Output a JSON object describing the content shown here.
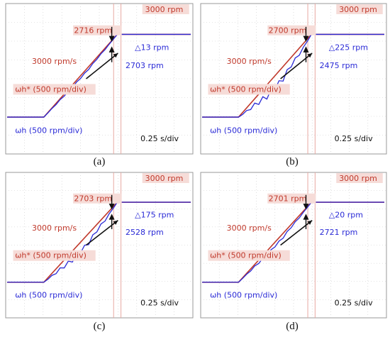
{
  "panels": [
    {
      "caption": "(a)",
      "chart_data": {
        "type": "line",
        "xlabel": "0.25 s/div",
        "legend_ref": "ωh* (500 rpm/div)",
        "legend_act": "ωh (500 rpm/div)",
        "annotation_rate": "3000 rpm/s",
        "annotation_final": "3000 rpm",
        "annotation_ref_value": "2716 rpm",
        "annotation_act_value": "2703 rpm",
        "annotation_delta": "△13 rpm",
        "ripple": 0.2,
        "series": [
          {
            "name": "ωh*",
            "color": "#c0392b",
            "x": [
              0,
              0.2,
              0.6,
              1.0
            ],
            "y": [
              0,
              0,
              3000,
              3000
            ]
          },
          {
            "name": "ωh",
            "color": "#2a2ad6"
          }
        ]
      }
    },
    {
      "caption": "(b)",
      "chart_data": {
        "type": "line",
        "xlabel": "0.25 s/div",
        "legend_ref": "ωh* (500 rpm/div)",
        "legend_act": "ωh (500 rpm/div)",
        "annotation_rate": "3000 rpm/s",
        "annotation_final": "3000 rpm",
        "annotation_ref_value": "2700 rpm",
        "annotation_act_value": "2475 rpm",
        "annotation_delta": "△225 rpm",
        "ripple": 1.0,
        "series": [
          {
            "name": "ωh*",
            "color": "#c0392b",
            "x": [
              0,
              0.2,
              0.6,
              1.0
            ],
            "y": [
              0,
              0,
              3000,
              3000
            ]
          },
          {
            "name": "ωh",
            "color": "#2a2ad6"
          }
        ]
      }
    },
    {
      "caption": "(c)",
      "chart_data": {
        "type": "line",
        "xlabel": "0.25 s/div",
        "legend_ref": "ωh* (500 rpm/div)",
        "legend_act": "ωh (500 rpm/div)",
        "annotation_rate": "3000 rpm/s",
        "annotation_final": "3000 rpm",
        "annotation_ref_value": "2703 rpm",
        "annotation_act_value": "2528 rpm",
        "annotation_delta": "△175 rpm",
        "ripple": 0.8,
        "series": [
          {
            "name": "ωh*",
            "color": "#c0392b",
            "x": [
              0,
              0.2,
              0.6,
              1.0
            ],
            "y": [
              0,
              0,
              3000,
              3000
            ]
          },
          {
            "name": "ωh",
            "color": "#2a2ad6"
          }
        ]
      }
    },
    {
      "caption": "(d)",
      "chart_data": {
        "type": "line",
        "xlabel": "0.25 s/div",
        "legend_ref": "ωh* (500 rpm/div)",
        "legend_act": "ωh (500 rpm/div)",
        "annotation_rate": "3000 rpm/s",
        "annotation_final": "3000 rpm",
        "annotation_ref_value": "2701 rpm",
        "annotation_act_value": "2721 rpm",
        "annotation_delta": "△20 rpm",
        "ripple": 0.35,
        "series": [
          {
            "name": "ωh*",
            "color": "#c0392b",
            "x": [
              0,
              0.2,
              0.6,
              1.0
            ],
            "y": [
              0,
              0,
              3000,
              3000
            ]
          },
          {
            "name": "ωh",
            "color": "#2a2ad6"
          }
        ]
      }
    }
  ],
  "colors": {
    "reference": "#c0392b",
    "actual": "#2a2ad6",
    "annotation_text": "#c0392b",
    "label_highlight": "#f6dcd8",
    "grid": "#c9c9c9",
    "arrow": "#111111"
  }
}
